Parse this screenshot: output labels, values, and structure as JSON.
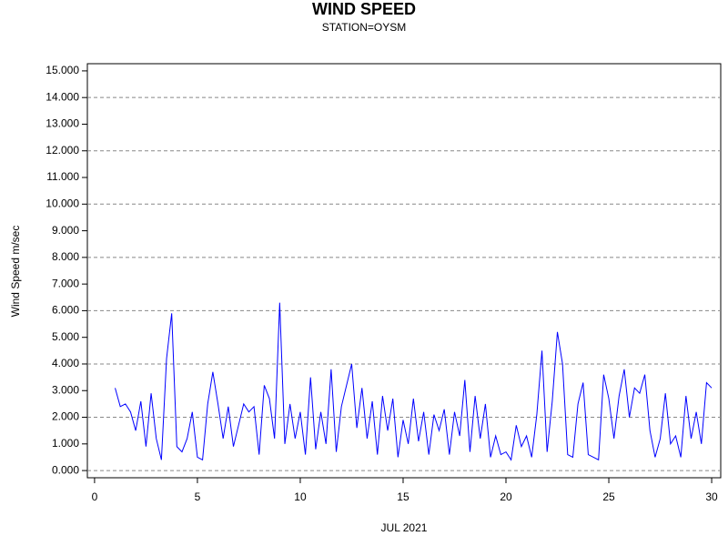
{
  "chart_data": {
    "type": "line",
    "title": "WIND SPEED",
    "subtitle": "STATION=OYSM",
    "x_label": "JUL 2021",
    "y_label": "Wind Speed m/sec",
    "color": "#0000ff",
    "x": [
      1,
      1.25,
      1.5,
      1.75,
      2,
      2.25,
      2.5,
      2.75,
      3,
      3.25,
      3.5,
      3.75,
      4,
      4.25,
      4.5,
      4.75,
      5,
      5.25,
      5.5,
      5.75,
      6,
      6.25,
      6.5,
      6.75,
      7,
      7.25,
      7.5,
      7.75,
      8,
      8.25,
      8.5,
      8.75,
      9,
      9.25,
      9.5,
      9.75,
      10,
      10.25,
      10.5,
      10.75,
      11,
      11.25,
      11.5,
      11.75,
      12,
      12.25,
      12.5,
      12.75,
      13,
      13.25,
      13.5,
      13.75,
      14,
      14.25,
      14.5,
      14.75,
      15,
      15.25,
      15.5,
      15.75,
      16,
      16.25,
      16.5,
      16.75,
      17,
      17.25,
      17.5,
      17.75,
      18,
      18.25,
      18.5,
      18.75,
      19,
      19.25,
      19.5,
      19.75,
      20,
      20.25,
      20.5,
      20.75,
      21,
      21.25,
      21.5,
      21.75,
      22,
      22.25,
      22.5,
      22.75,
      23,
      23.25,
      23.5,
      23.75,
      24,
      24.25,
      24.5,
      24.75,
      25,
      25.25,
      25.5,
      25.75,
      26,
      26.25,
      26.5,
      26.75,
      27,
      27.25,
      27.5,
      27.75,
      28,
      28.25,
      28.5,
      28.75,
      29,
      29.25,
      29.5,
      29.75,
      30
    ],
    "values": [
      3.1,
      2.4,
      2.5,
      2.2,
      1.5,
      2.6,
      0.9,
      2.9,
      1.2,
      0.4,
      4.2,
      5.9,
      0.9,
      0.7,
      1.2,
      2.2,
      0.5,
      0.4,
      2.5,
      3.7,
      2.5,
      1.2,
      2.4,
      0.9,
      1.7,
      2.5,
      2.2,
      2.4,
      0.6,
      3.2,
      2.7,
      1.2,
      6.3,
      1.0,
      2.5,
      1.2,
      2.2,
      0.6,
      3.5,
      0.8,
      2.2,
      1.0,
      3.8,
      0.7,
      2.4,
      3.2,
      4.0,
      1.6,
      3.1,
      1.2,
      2.6,
      0.6,
      2.8,
      1.5,
      2.7,
      0.5,
      1.9,
      1.0,
      2.7,
      1.1,
      2.2,
      0.6,
      2.1,
      1.5,
      2.3,
      0.6,
      2.2,
      1.3,
      3.4,
      0.7,
      2.8,
      1.2,
      2.5,
      0.5,
      1.3,
      0.6,
      0.7,
      0.4,
      1.7,
      0.9,
      1.3,
      0.5,
      2.1,
      4.5,
      0.7,
      2.6,
      5.2,
      4.0,
      0.6,
      0.5,
      2.5,
      3.3,
      0.6,
      0.5,
      0.4,
      3.6,
      2.7,
      1.2,
      2.8,
      3.8,
      2.0,
      3.1,
      2.9,
      3.6,
      1.5,
      0.5,
      1.2,
      2.9,
      1.0,
      1.3,
      0.5,
      2.8,
      1.2,
      2.2,
      1.0,
      3.3,
      3.1
    ],
    "xlim": [
      -0.35,
      30.44
    ],
    "xticks": [
      0,
      5,
      10,
      15,
      20,
      25,
      30
    ],
    "ylim": [
      -0.27,
      15.27
    ],
    "yticks": [
      {
        "value": 0,
        "label": "0.000"
      },
      {
        "value": 1,
        "label": "1.000"
      },
      {
        "value": 2,
        "label": "2.000"
      },
      {
        "value": 3,
        "label": "3.000"
      },
      {
        "value": 4,
        "label": "4.000"
      },
      {
        "value": 5,
        "label": "5.000"
      },
      {
        "value": 6,
        "label": "6.000"
      },
      {
        "value": 7,
        "label": "7.000"
      },
      {
        "value": 8,
        "label": "8.000"
      },
      {
        "value": 9,
        "label": "9.000"
      },
      {
        "value": 10,
        "label": "10.000"
      },
      {
        "value": 11,
        "label": "11.000"
      },
      {
        "value": 12,
        "label": "12.000"
      },
      {
        "value": 13,
        "label": "13.000"
      },
      {
        "value": 14,
        "label": "14.000"
      },
      {
        "value": 15,
        "label": "15.000"
      }
    ],
    "ygrid": [
      0,
      2,
      4,
      6,
      8,
      10,
      12,
      14
    ]
  }
}
